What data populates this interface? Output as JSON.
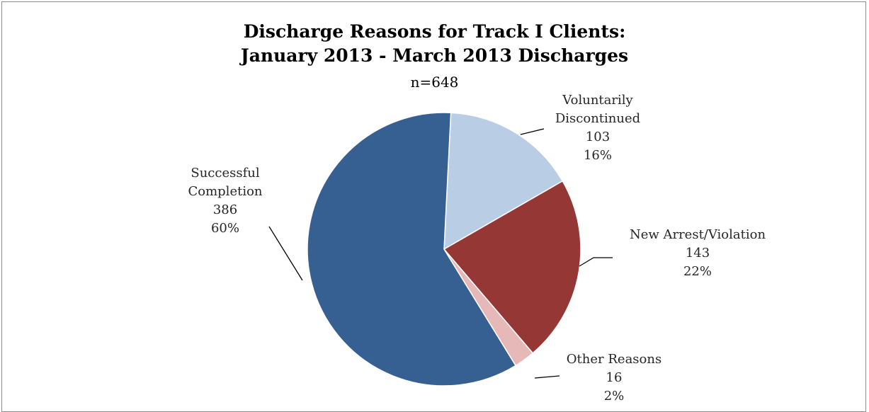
{
  "chart_data": {
    "type": "pie",
    "title_lines": [
      "Discharge Reasons for Track I Clients:",
      "January 2013 - March 2013 Discharges"
    ],
    "subtitle": "n=648",
    "slices": [
      {
        "name": "Voluntarily Discontinued",
        "label_lines": [
          "Voluntarily",
          "Discontinued"
        ],
        "value": 103,
        "percent": "16%",
        "color": "#b9cde5"
      },
      {
        "name": "New Arrest/Violation",
        "label_lines": [
          "New Arrest/Violation"
        ],
        "value": 143,
        "percent": "22%",
        "color": "#953735"
      },
      {
        "name": "Other Reasons",
        "label_lines": [
          "Other Reasons"
        ],
        "value": 16,
        "percent": "2%",
        "color": "#e6b9b8"
      },
      {
        "name": "Successful Completion",
        "label_lines": [
          "Successful",
          "Completion"
        ],
        "value": 386,
        "percent": "60%",
        "color": "#376092"
      }
    ]
  }
}
